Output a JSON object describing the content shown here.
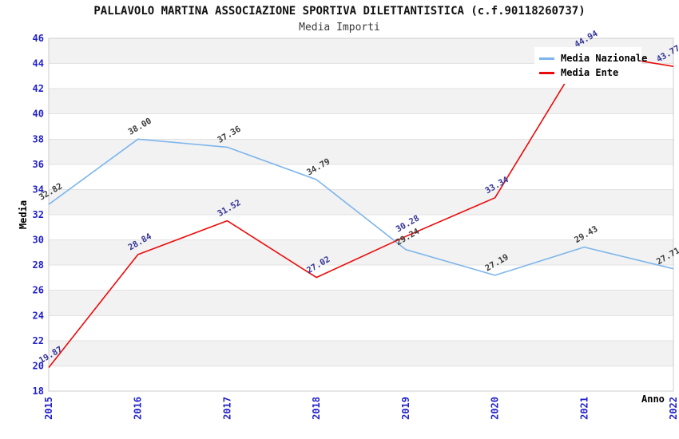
{
  "header": {
    "title": "PALLAVOLO MARTINA ASSOCIAZIONE SPORTIVA DILETTANTISTICA (c.f.90118260737)",
    "subtitle": "Media Importi"
  },
  "legend": {
    "items": [
      {
        "label": "Media Nazionale",
        "color": "#7cb5ec"
      },
      {
        "label": "Media Ente",
        "color": "#ec0b0b"
      }
    ]
  },
  "axes": {
    "x_title": "Anno",
    "y_title": "Media",
    "y_tick_labels": [
      "46",
      "44",
      "42",
      "40",
      "38",
      "36",
      "34",
      "32",
      "30",
      "28",
      "26",
      "24",
      "22",
      "20",
      "18"
    ],
    "x_tick_labels": [
      "2015",
      "2016",
      "2017",
      "2018",
      "2019",
      "2020",
      "2021",
      "2022"
    ]
  },
  "colors": {
    "tick_label": "#2222cc",
    "band_fill": "#f2f2f2",
    "grid_line": "#e2e2e2",
    "plot_border": "#cccccc",
    "title": "#111111",
    "subtitle": "#3a3a3a",
    "background": "#ffffff"
  },
  "chart_data": {
    "type": "line",
    "title": "PALLAVOLO MARTINA ASSOCIAZIONE SPORTIVA DILETTANTISTICA (c.f.90118260737)",
    "subtitle": "Media Importi",
    "xlabel": "Anno",
    "ylabel": "Media",
    "categories": [
      "2015",
      "2016",
      "2017",
      "2018",
      "2019",
      "2020",
      "2021",
      "2022"
    ],
    "series": [
      {
        "name": "Media Nazionale",
        "color": "#7cb5ec",
        "label_color": "#3c3c3c",
        "values": [
          32.82,
          38.0,
          37.36,
          34.79,
          29.24,
          27.19,
          29.43,
          27.71
        ]
      },
      {
        "name": "Media Ente",
        "color": "#ec0b0b",
        "label_color": "#333399",
        "values": [
          19.87,
          28.84,
          31.52,
          27.02,
          30.28,
          33.34,
          44.94,
          43.77
        ]
      }
    ],
    "ylim": [
      18,
      46
    ],
    "ytick_step": 2,
    "grid": "alternating-horizontal-bands",
    "legend_position": "top-right",
    "value_decimals": 2,
    "data_label_rotation": -30,
    "x_tick_rotation": -90
  }
}
